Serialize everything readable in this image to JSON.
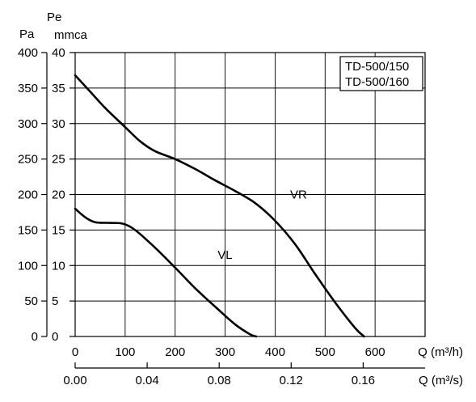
{
  "chart_data": {
    "type": "line",
    "legend": {
      "entries": [
        "TD-500/150",
        "TD-500/160"
      ],
      "placement": "top-right"
    },
    "y_axis_left": {
      "title": "Pa",
      "ticks": [
        "400",
        "350",
        "300",
        "250",
        "200",
        "150",
        "100",
        "50",
        "0"
      ],
      "range": [
        0,
        400
      ]
    },
    "y_axis_right": {
      "title_line1": "Pe",
      "title_line2": "mmca",
      "ticks": [
        "40",
        "35",
        "30",
        "25",
        "20",
        "15",
        "10",
        "5",
        "0"
      ],
      "range": [
        0,
        40
      ]
    },
    "x_axis_top": {
      "title": "Q (m³/h)",
      "ticks": [
        "0",
        "100",
        "200",
        "300",
        "400",
        "500",
        "600"
      ],
      "range": [
        0,
        700
      ]
    },
    "x_axis_bottom": {
      "title": "Q (m³/s)",
      "ticks": [
        "0.00",
        "0.04",
        "0.08",
        "0.12",
        "0.16"
      ],
      "range": [
        0,
        0.1944
      ]
    },
    "grid": true,
    "series": [
      {
        "name": "VR",
        "x": [
          0,
          30,
          60,
          100,
          130,
          160,
          200,
          240,
          280,
          320,
          360,
          400,
          440,
          480,
          520,
          560,
          578
        ],
        "y": [
          368,
          345,
          322,
          295,
          275,
          261,
          250,
          236,
          220,
          205,
          188,
          163,
          130,
          88,
          48,
          12,
          0
        ]
      },
      {
        "name": "VL",
        "x": [
          0,
          20,
          40,
          70,
          95,
          120,
          160,
          200,
          240,
          280,
          320,
          350,
          362
        ],
        "y": [
          180,
          168,
          161,
          160,
          159,
          150,
          125,
          97,
          68,
          42,
          17,
          3,
          0
        ]
      }
    ]
  }
}
